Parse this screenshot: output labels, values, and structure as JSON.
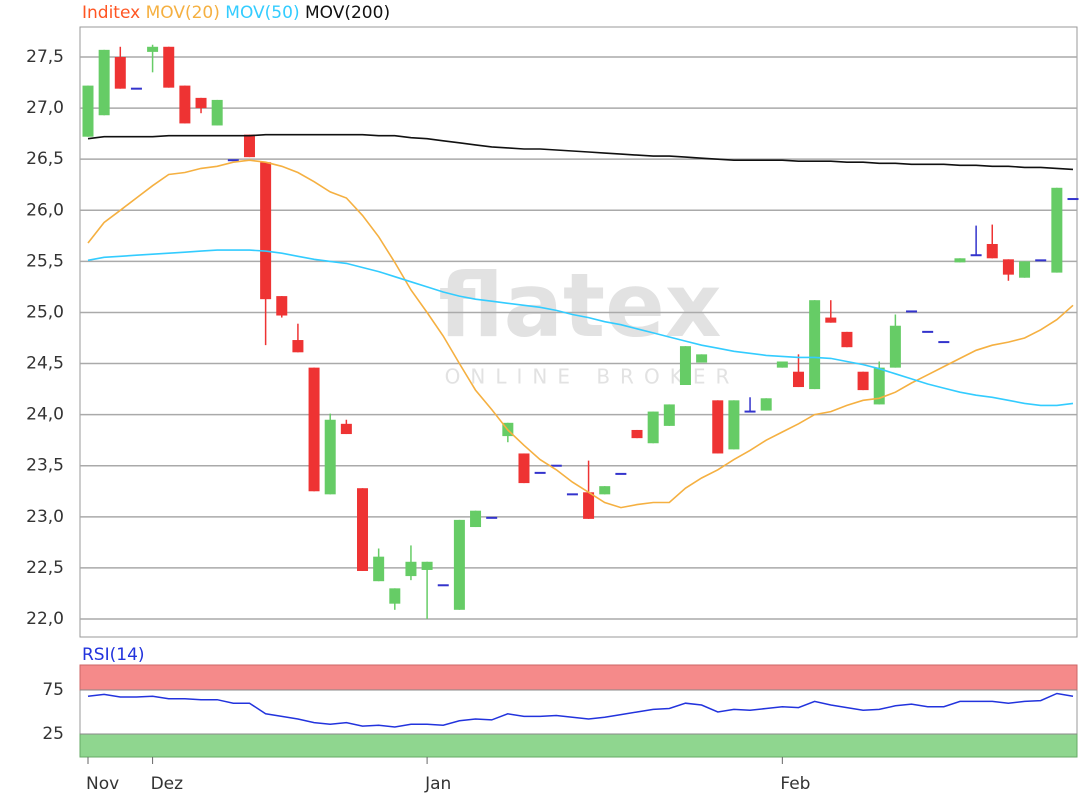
{
  "chart_data": {
    "type": "candlestick",
    "watermark": [
      "flatex",
      "ONLINE BROKER"
    ],
    "categories": [
      "Nov",
      null,
      null,
      null,
      "Dez",
      null,
      null,
      null,
      null,
      null,
      null,
      null,
      null,
      null,
      null,
      null,
      null,
      null,
      null,
      null,
      null,
      "Jan",
      null,
      null,
      null,
      null,
      null,
      null,
      null,
      null,
      null,
      null,
      null,
      null,
      null,
      null,
      null,
      null,
      null,
      null,
      null,
      null,
      null,
      "Feb",
      null,
      null,
      null,
      null,
      null,
      null,
      null,
      null,
      null,
      null,
      null,
      null,
      null,
      null,
      null,
      null,
      null,
      null
    ],
    "price": {
      "name": "Inditex",
      "color": "#ff5522",
      "up_color": "#66cc66",
      "down_color": "#ee3333",
      "flat_color": "#3333cc",
      "open": [
        26.72,
        26.93,
        27.5,
        27.19,
        27.55,
        27.6,
        27.22,
        27.1,
        26.83,
        26.49,
        26.74,
        26.47,
        25.16,
        24.73,
        24.46,
        23.22,
        23.91,
        23.28,
        22.37,
        22.15,
        22.42,
        22.48,
        22.33,
        22.09,
        22.9,
        22.99,
        23.79,
        23.62,
        23.43,
        23.5,
        23.22,
        23.24,
        23.22,
        23.42,
        23.85,
        23.72,
        23.89,
        24.29,
        24.51,
        24.14,
        23.66,
        24.03,
        24.04,
        24.46,
        24.42,
        24.25,
        24.95,
        24.81,
        24.42,
        24.1,
        24.46,
        25.01,
        24.81,
        24.71,
        25.49,
        25.56,
        25.67,
        25.52,
        25.34,
        25.51,
        25.39,
        26.11
      ],
      "high": [
        27.22,
        27.57,
        27.6,
        27.19,
        27.62,
        27.6,
        27.22,
        27.1,
        27.08,
        26.49,
        26.74,
        26.47,
        25.16,
        24.89,
        24.46,
        24.01,
        23.95,
        23.28,
        22.69,
        22.3,
        22.72,
        22.56,
        22.33,
        22.97,
        23.06,
        22.99,
        23.92,
        23.62,
        23.43,
        23.5,
        23.22,
        23.55,
        23.3,
        23.42,
        23.85,
        24.03,
        24.1,
        24.67,
        24.59,
        24.14,
        24.14,
        24.17,
        24.16,
        24.52,
        24.59,
        25.12,
        25.12,
        24.81,
        24.42,
        24.52,
        24.98,
        25.01,
        24.81,
        24.71,
        25.53,
        25.85,
        25.86,
        25.52,
        25.5,
        25.51,
        26.22,
        26.11
      ],
      "low": [
        26.72,
        26.93,
        27.19,
        27.19,
        27.35,
        27.2,
        26.85,
        26.95,
        26.83,
        26.49,
        26.52,
        24.68,
        24.95,
        24.61,
        23.25,
        23.22,
        23.81,
        22.47,
        22.37,
        22.09,
        22.38,
        22.0,
        22.33,
        22.09,
        22.9,
        22.99,
        23.73,
        23.33,
        23.43,
        23.5,
        23.22,
        22.98,
        23.22,
        23.42,
        23.77,
        23.72,
        23.89,
        24.29,
        24.51,
        23.62,
        23.66,
        24.03,
        24.04,
        24.46,
        24.27,
        24.25,
        24.9,
        24.66,
        24.24,
        24.1,
        24.46,
        25.01,
        24.81,
        24.71,
        25.49,
        25.56,
        25.53,
        25.31,
        25.34,
        25.51,
        25.39,
        26.11
      ],
      "close": [
        27.22,
        27.57,
        27.19,
        27.19,
        27.6,
        27.2,
        26.85,
        27.0,
        27.08,
        26.49,
        26.52,
        25.13,
        24.97,
        24.61,
        23.25,
        23.95,
        23.81,
        22.47,
        22.61,
        22.3,
        22.56,
        22.56,
        22.33,
        22.97,
        23.06,
        22.99,
        23.92,
        23.33,
        23.43,
        23.5,
        23.22,
        22.98,
        23.3,
        23.42,
        23.77,
        24.03,
        24.1,
        24.67,
        24.59,
        23.62,
        24.14,
        24.03,
        24.16,
        24.52,
        24.27,
        25.12,
        24.9,
        24.66,
        24.24,
        24.46,
        24.87,
        25.01,
        24.81,
        24.71,
        25.53,
        25.56,
        25.53,
        25.37,
        25.5,
        25.51,
        26.22,
        26.11
      ]
    },
    "series": [
      {
        "name": "MOV(20)",
        "color": "#f5b041",
        "values": [
          25.68,
          25.88,
          26.0,
          26.12,
          26.24,
          26.35,
          26.37,
          26.41,
          26.43,
          26.47,
          26.49,
          26.47,
          26.43,
          26.37,
          26.28,
          26.18,
          26.12,
          25.95,
          25.74,
          25.49,
          25.22,
          25.0,
          24.77,
          24.5,
          24.24,
          24.05,
          23.85,
          23.7,
          23.56,
          23.46,
          23.34,
          23.24,
          23.14,
          23.09,
          23.12,
          23.14,
          23.14,
          23.28,
          23.38,
          23.46,
          23.56,
          23.65,
          23.75,
          23.83,
          23.91,
          24.0,
          24.03,
          24.09,
          24.14,
          24.16,
          24.22,
          24.31,
          24.39,
          24.47,
          24.55,
          24.63,
          24.68,
          24.71,
          24.75,
          24.83,
          24.93,
          25.07
        ]
      },
      {
        "name": "MOV(50)",
        "color": "#33ccff",
        "values": [
          25.51,
          25.54,
          25.55,
          25.56,
          25.57,
          25.58,
          25.59,
          25.6,
          25.61,
          25.61,
          25.61,
          25.6,
          25.58,
          25.55,
          25.52,
          25.5,
          25.48,
          25.44,
          25.4,
          25.35,
          25.3,
          25.25,
          25.2,
          25.16,
          25.13,
          25.11,
          25.09,
          25.07,
          25.05,
          25.02,
          24.98,
          24.95,
          24.91,
          24.88,
          24.84,
          24.8,
          24.76,
          24.72,
          24.68,
          24.65,
          24.62,
          24.6,
          24.58,
          24.57,
          24.56,
          24.56,
          24.55,
          24.52,
          24.49,
          24.45,
          24.4,
          24.35,
          24.3,
          24.26,
          24.22,
          24.19,
          24.17,
          24.14,
          24.11,
          24.09,
          24.09,
          24.11
        ]
      },
      {
        "name": "MOV(200)",
        "color": "#111111",
        "values": [
          26.7,
          26.72,
          26.72,
          26.72,
          26.72,
          26.73,
          26.73,
          26.73,
          26.73,
          26.73,
          26.73,
          26.74,
          26.74,
          26.74,
          26.74,
          26.74,
          26.74,
          26.74,
          26.73,
          26.73,
          26.71,
          26.7,
          26.68,
          26.66,
          26.64,
          26.62,
          26.61,
          26.6,
          26.6,
          26.59,
          26.58,
          26.57,
          26.56,
          26.55,
          26.54,
          26.53,
          26.53,
          26.52,
          26.51,
          26.5,
          26.49,
          26.49,
          26.49,
          26.49,
          26.48,
          26.48,
          26.48,
          26.47,
          26.47,
          26.46,
          26.46,
          26.45,
          26.45,
          26.45,
          26.44,
          26.44,
          26.43,
          26.43,
          26.42,
          26.42,
          26.41,
          26.4
        ]
      }
    ],
    "ylim": [
      22.0,
      27.5
    ],
    "yticks": [
      {
        "value": 22.0,
        "label": "22,0"
      },
      {
        "value": 22.5,
        "label": "22,5"
      },
      {
        "value": 23.0,
        "label": "23,0"
      },
      {
        "value": 23.5,
        "label": "23,5"
      },
      {
        "value": 24.0,
        "label": "24,0"
      },
      {
        "value": 24.5,
        "label": "24,5"
      },
      {
        "value": 25.0,
        "label": "25,0"
      },
      {
        "value": 25.5,
        "label": "25,5"
      },
      {
        "value": 26.0,
        "label": "26,0"
      },
      {
        "value": 26.5,
        "label": "26,5"
      },
      {
        "value": 27.0,
        "label": "27,0"
      },
      {
        "value": 27.5,
        "label": "27,5"
      }
    ],
    "grid": true,
    "rsi": {
      "name": "RSI(14)",
      "color": "#2233dd",
      "values": [
        68,
        70,
        67,
        67,
        68,
        65,
        65,
        64,
        64,
        60,
        60,
        48,
        45,
        42,
        38,
        36,
        38,
        34,
        35,
        33,
        36,
        36,
        35,
        40,
        42,
        41,
        48,
        45,
        45,
        46,
        44,
        42,
        44,
        47,
        50,
        53,
        54,
        60,
        58,
        50,
        53,
        52,
        54,
        56,
        55,
        62,
        58,
        55,
        52,
        53,
        57,
        59,
        56,
        56,
        62,
        62,
        62,
        60,
        62,
        63,
        71,
        68
      ],
      "ylim": [
        0,
        100
      ],
      "yticks": [
        25,
        75
      ],
      "high_color": "#f58a8a",
      "low_color": "#8fd68f"
    }
  }
}
